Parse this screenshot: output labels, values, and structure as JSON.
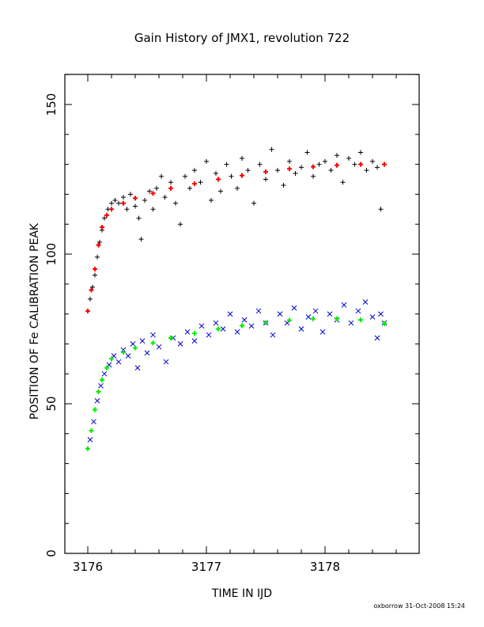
{
  "chart_data": {
    "type": "scatter",
    "title": "Gain History of JMX1, revolution 722",
    "xlabel": "TIME IN IJD",
    "ylabel": "POSITION OF Fe CALIBRATION PEAK",
    "xlim": [
      3175.8,
      3178.8
    ],
    "ylim": [
      0,
      160
    ],
    "xticks": [
      3176,
      3177,
      3178
    ],
    "yticks": [
      0,
      50,
      100,
      150
    ],
    "grid": false,
    "legend": "none",
    "series": [
      {
        "marker": "+",
        "color": "#000000",
        "points": [
          [
            3176.02,
            85
          ],
          [
            3176.04,
            89
          ],
          [
            3176.06,
            93
          ],
          [
            3176.08,
            99
          ],
          [
            3176.1,
            104
          ],
          [
            3176.12,
            108
          ],
          [
            3176.14,
            112
          ],
          [
            3176.17,
            115
          ],
          [
            3176.2,
            117
          ],
          [
            3176.23,
            118
          ],
          [
            3176.26,
            117
          ],
          [
            3176.3,
            119
          ],
          [
            3176.33,
            115
          ],
          [
            3176.36,
            120
          ],
          [
            3176.4,
            116
          ],
          [
            3176.43,
            112
          ],
          [
            3176.45,
            105
          ],
          [
            3176.48,
            118
          ],
          [
            3176.52,
            121
          ],
          [
            3176.55,
            115
          ],
          [
            3176.58,
            122
          ],
          [
            3176.62,
            126
          ],
          [
            3176.65,
            119
          ],
          [
            3176.7,
            124
          ],
          [
            3176.74,
            117
          ],
          [
            3176.78,
            110
          ],
          [
            3176.82,
            126
          ],
          [
            3176.86,
            122
          ],
          [
            3176.9,
            128
          ],
          [
            3176.95,
            124
          ],
          [
            3177.0,
            131
          ],
          [
            3177.04,
            118
          ],
          [
            3177.08,
            127
          ],
          [
            3177.12,
            121
          ],
          [
            3177.17,
            130
          ],
          [
            3177.21,
            126
          ],
          [
            3177.26,
            122
          ],
          [
            3177.3,
            132
          ],
          [
            3177.35,
            128
          ],
          [
            3177.4,
            117
          ],
          [
            3177.45,
            130
          ],
          [
            3177.5,
            125
          ],
          [
            3177.55,
            135
          ],
          [
            3177.6,
            128
          ],
          [
            3177.65,
            123
          ],
          [
            3177.7,
            131
          ],
          [
            3177.75,
            127
          ],
          [
            3177.8,
            129
          ],
          [
            3177.85,
            134
          ],
          [
            3177.9,
            126
          ],
          [
            3177.95,
            130
          ],
          [
            3178.0,
            131
          ],
          [
            3178.05,
            128
          ],
          [
            3178.1,
            133
          ],
          [
            3178.15,
            124
          ],
          [
            3178.2,
            132
          ],
          [
            3178.25,
            130
          ],
          [
            3178.3,
            134
          ],
          [
            3178.35,
            128
          ],
          [
            3178.4,
            131
          ],
          [
            3178.44,
            129
          ],
          [
            3178.47,
            115
          ],
          [
            3178.5,
            130
          ]
        ]
      },
      {
        "marker": "+",
        "color": "#ff0000",
        "points": [
          [
            3176.0,
            81
          ],
          [
            3176.03,
            88
          ],
          [
            3176.06,
            95
          ],
          [
            3176.09,
            103
          ],
          [
            3176.12,
            109
          ],
          [
            3176.16,
            113
          ],
          [
            3176.2,
            115
          ],
          [
            3176.3,
            117
          ],
          [
            3176.4,
            118.7
          ],
          [
            3176.55,
            120.3
          ],
          [
            3176.7,
            122
          ],
          [
            3176.9,
            123.5
          ],
          [
            3177.1,
            125
          ],
          [
            3177.3,
            126.3
          ],
          [
            3177.5,
            127.5
          ],
          [
            3177.7,
            128.5
          ],
          [
            3177.9,
            129.2
          ],
          [
            3178.1,
            129.7
          ],
          [
            3178.3,
            130
          ],
          [
            3178.5,
            130
          ]
        ]
      },
      {
        "marker": "x",
        "color": "#0000cc",
        "points": [
          [
            3176.02,
            38
          ],
          [
            3176.05,
            44
          ],
          [
            3176.08,
            51
          ],
          [
            3176.11,
            56
          ],
          [
            3176.14,
            60
          ],
          [
            3176.18,
            63
          ],
          [
            3176.22,
            66
          ],
          [
            3176.26,
            64
          ],
          [
            3176.3,
            68
          ],
          [
            3176.34,
            66
          ],
          [
            3176.38,
            70
          ],
          [
            3176.42,
            62
          ],
          [
            3176.46,
            71
          ],
          [
            3176.5,
            67
          ],
          [
            3176.55,
            73
          ],
          [
            3176.6,
            69
          ],
          [
            3176.66,
            64
          ],
          [
            3176.72,
            72
          ],
          [
            3176.78,
            70
          ],
          [
            3176.84,
            74
          ],
          [
            3176.9,
            71
          ],
          [
            3176.96,
            76
          ],
          [
            3177.02,
            73
          ],
          [
            3177.08,
            77
          ],
          [
            3177.14,
            75
          ],
          [
            3177.2,
            80
          ],
          [
            3177.26,
            74
          ],
          [
            3177.32,
            78
          ],
          [
            3177.38,
            76
          ],
          [
            3177.44,
            81
          ],
          [
            3177.5,
            77
          ],
          [
            3177.56,
            73
          ],
          [
            3177.62,
            80
          ],
          [
            3177.68,
            77
          ],
          [
            3177.74,
            82
          ],
          [
            3177.8,
            75
          ],
          [
            3177.86,
            79
          ],
          [
            3177.92,
            81
          ],
          [
            3177.98,
            74
          ],
          [
            3178.04,
            80
          ],
          [
            3178.1,
            78
          ],
          [
            3178.16,
            83
          ],
          [
            3178.22,
            77
          ],
          [
            3178.28,
            81
          ],
          [
            3178.34,
            84
          ],
          [
            3178.4,
            79
          ],
          [
            3178.44,
            72
          ],
          [
            3178.47,
            80
          ],
          [
            3178.5,
            77
          ]
        ]
      },
      {
        "marker": "+",
        "color": "#00ee00",
        "points": [
          [
            3176.0,
            35
          ],
          [
            3176.03,
            41
          ],
          [
            3176.06,
            48
          ],
          [
            3176.09,
            54
          ],
          [
            3176.12,
            58
          ],
          [
            3176.16,
            62
          ],
          [
            3176.2,
            65
          ],
          [
            3176.3,
            67.2
          ],
          [
            3176.4,
            68.7
          ],
          [
            3176.55,
            70.3
          ],
          [
            3176.7,
            72
          ],
          [
            3176.9,
            73.5
          ],
          [
            3177.1,
            75
          ],
          [
            3177.3,
            76.1
          ],
          [
            3177.5,
            77.1
          ],
          [
            3177.7,
            77.9
          ],
          [
            3177.9,
            78.4
          ],
          [
            3178.1,
            78.4
          ],
          [
            3178.3,
            78
          ],
          [
            3178.5,
            76.8
          ]
        ]
      }
    ]
  },
  "footer": {
    "text": "oxborrow 31-Oct-2008 15:24"
  }
}
